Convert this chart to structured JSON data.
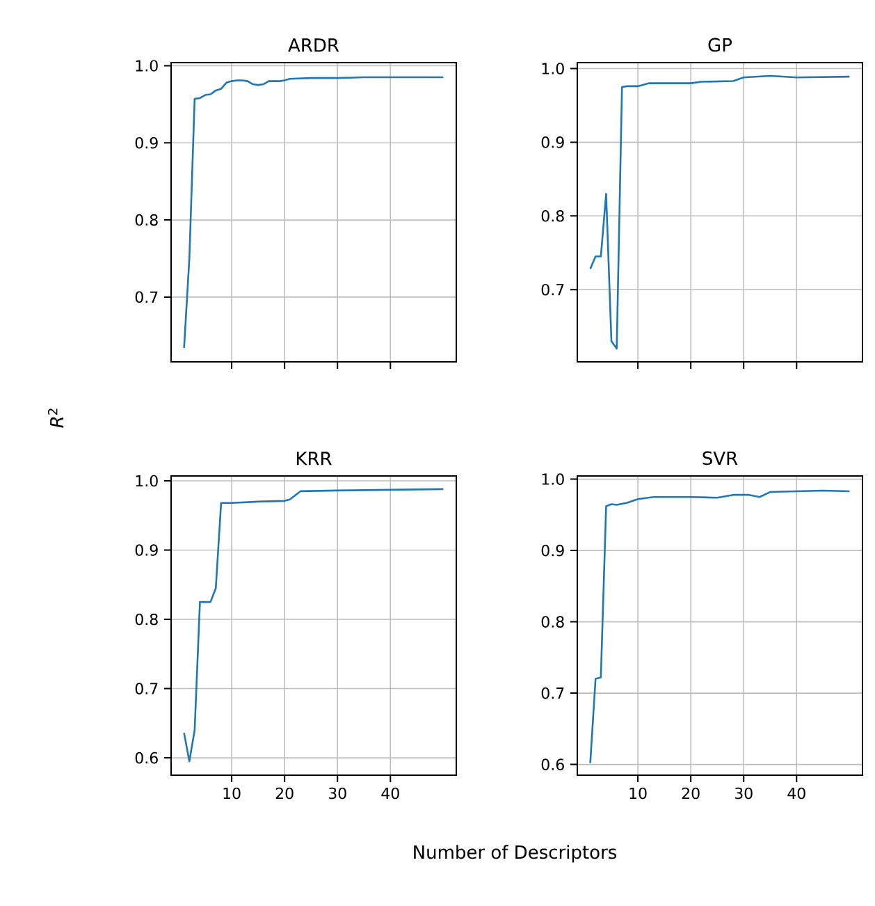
{
  "chart_data": [
    {
      "type": "line",
      "title": "ARDR",
      "ylabel": "*R*$^{2}$",
      "xlim": [
        -1.45,
        52.45
      ],
      "ylim": [
        0.616,
        1.004
      ],
      "xticks": [
        10,
        20,
        30,
        40
      ],
      "yticks": [
        {
          "value": 0.7,
          "label": "0.7"
        },
        {
          "value": 0.8,
          "label": "0.8"
        },
        {
          "value": 0.9,
          "label": "0.9"
        },
        {
          "value": 1.0,
          "label": "1.0"
        }
      ],
      "tick_labels": "y",
      "grid": true,
      "series": [
        {
          "color": "#1f77b4",
          "x": [
            1,
            2,
            3,
            4,
            5,
            6,
            7,
            8,
            9,
            10,
            11,
            12,
            13,
            14,
            15,
            16,
            17,
            18,
            19,
            20,
            21,
            25,
            30,
            35,
            40,
            45,
            50
          ],
          "values": [
            0.634,
            0.75,
            0.957,
            0.958,
            0.962,
            0.963,
            0.968,
            0.97,
            0.978,
            0.98,
            0.981,
            0.981,
            0.98,
            0.976,
            0.975,
            0.976,
            0.98,
            0.98,
            0.98,
            0.981,
            0.983,
            0.984,
            0.984,
            0.985,
            0.985,
            0.985,
            0.985
          ]
        }
      ]
    },
    {
      "type": "line",
      "title": "GP",
      "xlim": [
        -1.45,
        52.45
      ],
      "ylim": [
        0.602,
        1.008
      ],
      "xticks": [
        10,
        20,
        30,
        40
      ],
      "yticks": [
        {
          "value": 0.7,
          "label": "0.7"
        },
        {
          "value": 0.8,
          "label": "0.8"
        },
        {
          "value": 0.9,
          "label": "0.9"
        },
        {
          "value": 1.0,
          "label": "1.0"
        }
      ],
      "tick_labels": "y",
      "grid": true,
      "series": [
        {
          "color": "#1f77b4",
          "x": [
            1,
            2,
            3,
            4,
            5,
            6,
            7,
            8,
            10,
            12,
            20,
            22,
            28,
            30,
            35,
            40,
            50
          ],
          "values": [
            0.728,
            0.745,
            0.745,
            0.83,
            0.63,
            0.62,
            0.975,
            0.976,
            0.976,
            0.98,
            0.98,
            0.982,
            0.983,
            0.988,
            0.99,
            0.988,
            0.989
          ]
        }
      ]
    },
    {
      "type": "line",
      "title": "KRR",
      "xlabel": "Number of Descriptors",
      "xlim": [
        -1.45,
        52.45
      ],
      "ylim": [
        0.575,
        1.007
      ],
      "xticks": [
        10,
        20,
        30,
        40
      ],
      "yticks": [
        {
          "value": 0.6,
          "label": "0.6"
        },
        {
          "value": 0.7,
          "label": "0.7"
        },
        {
          "value": 0.8,
          "label": "0.8"
        },
        {
          "value": 0.9,
          "label": "0.9"
        },
        {
          "value": 1.0,
          "label": "1.0"
        }
      ],
      "grid": true,
      "series": [
        {
          "color": "#1f77b4",
          "x": [
            1,
            2,
            3,
            4,
            5,
            6,
            7,
            8,
            10,
            15,
            20,
            21,
            23,
            30,
            40,
            50
          ],
          "values": [
            0.636,
            0.595,
            0.64,
            0.825,
            0.825,
            0.825,
            0.845,
            0.968,
            0.968,
            0.97,
            0.971,
            0.973,
            0.985,
            0.986,
            0.987,
            0.988
          ]
        }
      ]
    },
    {
      "type": "line",
      "title": "SVR",
      "xlim": [
        -1.45,
        52.45
      ],
      "ylim": [
        0.585,
        1.0045
      ],
      "xticks": [
        10,
        20,
        30,
        40
      ],
      "yticks": [
        {
          "value": 0.6,
          "label": "0.6"
        },
        {
          "value": 0.7,
          "label": "0.7"
        },
        {
          "value": 0.8,
          "label": "0.8"
        },
        {
          "value": 0.9,
          "label": "0.9"
        },
        {
          "value": 1.0,
          "label": "1.0"
        }
      ],
      "grid": true,
      "series": [
        {
          "color": "#1f77b4",
          "x": [
            1,
            2,
            3,
            4,
            5,
            6,
            8,
            10,
            13,
            20,
            25,
            28,
            31,
            33,
            35,
            45,
            50
          ],
          "values": [
            0.602,
            0.72,
            0.722,
            0.962,
            0.965,
            0.964,
            0.967,
            0.972,
            0.975,
            0.975,
            0.974,
            0.978,
            0.978,
            0.975,
            0.982,
            0.984,
            0.983
          ]
        }
      ]
    }
  ]
}
